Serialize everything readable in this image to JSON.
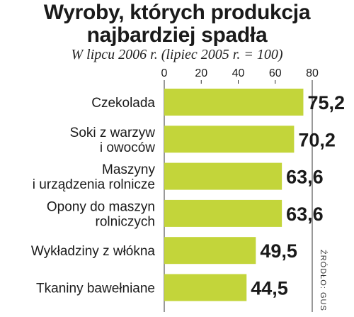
{
  "title_lines": [
    "Wyroby, których produkcja",
    "najbardziej spadła"
  ],
  "subtitle": "W lipcu 2006 r. (lipiec 2005 r. = 100)",
  "source": "ŹRÓDŁO: GUS",
  "colors": {
    "bar": "#c3d53a",
    "text": "#1a1a1a",
    "axis": "#333333"
  },
  "chart_data": {
    "type": "bar",
    "orientation": "horizontal",
    "xlim": [
      0,
      80
    ],
    "xticks": [
      0,
      20,
      40,
      60,
      80
    ],
    "grid": false,
    "categories": [
      [
        "Czekolada"
      ],
      [
        "Soki z warzyw",
        "i owoców"
      ],
      [
        "Maszyny",
        "i urządzenia rolnicze"
      ],
      [
        "Opony do maszyn",
        "rolniczych"
      ],
      [
        "Wykładziny z włókna"
      ],
      [
        "Tkaniny bawełniane"
      ]
    ],
    "values": [
      75.2,
      70.2,
      63.6,
      63.6,
      49.5,
      44.5
    ],
    "value_labels": [
      "75,2",
      "70,2",
      "63,6",
      "63,6",
      "49,5",
      "44,5"
    ]
  }
}
